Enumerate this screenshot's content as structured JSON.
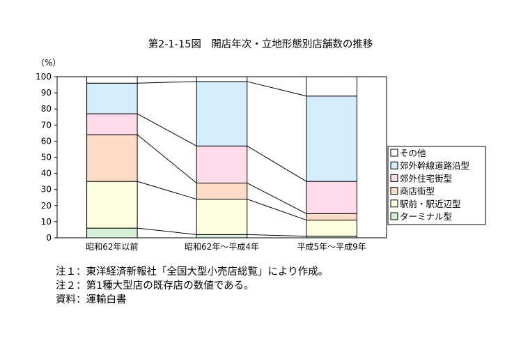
{
  "chart_data": {
    "type": "bar",
    "stacked": true,
    "title": "第2-1-15図　開店年次・立地形態別店舗数の推移",
    "yunit": "（%）",
    "ylim": [
      0,
      100
    ],
    "yticks": [
      0,
      10,
      20,
      30,
      40,
      50,
      60,
      70,
      80,
      90,
      100
    ],
    "categories": [
      "昭和62年以前",
      "昭和62年～平成4年",
      "平成5年～平成9年"
    ],
    "series": [
      {
        "name": "ターミナル型",
        "color": "#d6f0d8",
        "values": [
          6,
          2,
          1
        ]
      },
      {
        "name": "駅前・駅近辺型",
        "color": "#fefee0",
        "values": [
          29,
          22,
          10
        ]
      },
      {
        "name": "商店街型",
        "color": "#fddcc6",
        "values": [
          29,
          10,
          4
        ]
      },
      {
        "name": "郊外住宅街型",
        "color": "#fddbe8",
        "values": [
          13,
          23,
          20
        ]
      },
      {
        "name": "郊外幹線道路沿型",
        "color": "#d4ecfb",
        "values": [
          19,
          40,
          53
        ]
      },
      {
        "name": "その他",
        "color": "#ffffff",
        "values": [
          4,
          3,
          12
        ]
      }
    ],
    "legend_position": "right",
    "grid": false
  },
  "notes": [
    "注１：東洋経済新報社「全国大型小売店総覧」により作成。",
    "注２：第1種大型店の既存店の数値である。",
    "資料：運輸白書"
  ]
}
